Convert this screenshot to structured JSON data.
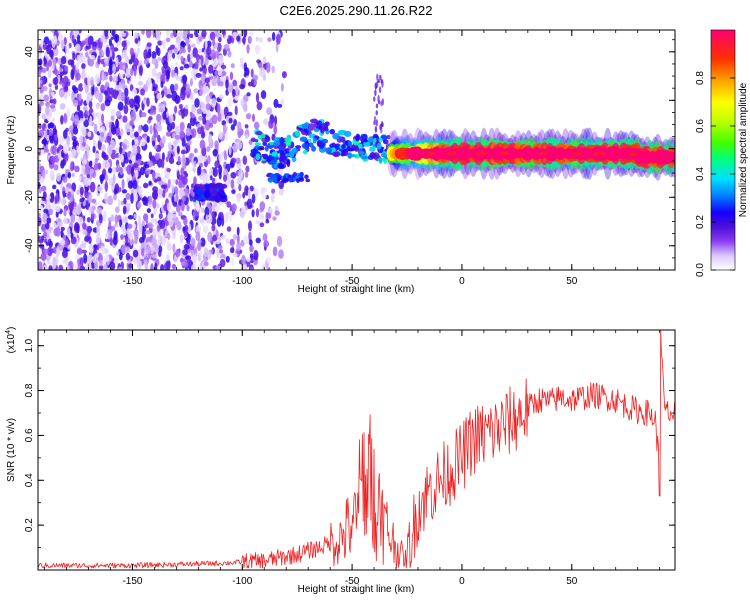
{
  "title": "C2E6.2025.290.11.26.R22",
  "chart_data": [
    {
      "type": "heatmap",
      "xlabel": "Height of straight line (km)",
      "ylabel": "Frequency (Hz)",
      "xlim": [
        -193,
        97
      ],
      "ylim": [
        -50,
        49
      ],
      "xticks": [
        -150,
        -100,
        -50,
        0,
        50
      ],
      "yticks": [
        -40,
        -20,
        0,
        20,
        40
      ],
      "colorbar": {
        "label": "Normalized spectral amplitude",
        "range": [
          0,
          1
        ],
        "ticks": [
          "0.0",
          "0.2",
          "0.4",
          "0.6",
          "0.8"
        ],
        "tick_values": [
          0,
          0.2,
          0.4,
          0.6,
          0.8
        ],
        "colors": [
          "#ffffff",
          "#dcc8ff",
          "#8a3cf0",
          "#4a10d8",
          "#1400ff",
          "#0080ff",
          "#00e0ff",
          "#00ff80",
          "#40ff00",
          "#c0ff00",
          "#ffff00",
          "#ffa000",
          "#ff3000",
          "#ff0070"
        ]
      },
      "regions": [
        {
          "name": "noise",
          "x_range": [
            -193,
            -80
          ],
          "freq_range": [
            -50,
            49
          ],
          "amplitude": 0.12
        },
        {
          "name": "transition",
          "x_range": [
            -95,
            -30
          ],
          "freq_range": [
            -15,
            10
          ],
          "amplitude": 0.35
        },
        {
          "name": "signal",
          "x_range": [
            -30,
            97
          ],
          "freq_center": -2,
          "amplitude": 0.85
        }
      ]
    },
    {
      "type": "line",
      "xlabel": "Height of straight line (km)",
      "ylabel": "SNR (10 * v/v)",
      "multiplier": "(x10",
      "multiplier_exp": "4",
      "multiplier_close": ")",
      "xlim": [
        -193,
        97
      ],
      "ylim": [
        0,
        1.07
      ],
      "xticks": [
        -150,
        -100,
        -50,
        0,
        50
      ],
      "yticks": [
        0.2,
        0.4,
        0.6,
        0.8,
        1.0
      ],
      "ytick_labels": [
        "0.2",
        "0.4",
        "0.6",
        "0.8",
        "1.0"
      ],
      "color": "#ee2222",
      "series": [
        {
          "name": "SNR",
          "x": [
            -193,
            -150,
            -110,
            -90,
            -75,
            -65,
            -55,
            -48,
            -45,
            -42,
            -40,
            -36,
            -30,
            -25,
            -20,
            -15,
            -10,
            -5,
            0,
            5,
            10,
            15,
            20,
            25,
            30,
            35,
            40,
            45,
            50,
            55,
            60,
            65,
            70,
            75,
            80,
            85,
            88,
            90,
            91,
            92,
            94,
            97
          ],
          "y": [
            0.02,
            0.02,
            0.03,
            0.04,
            0.07,
            0.1,
            0.14,
            0.24,
            0.35,
            0.4,
            0.3,
            0.22,
            0.1,
            0.04,
            0.28,
            0.35,
            0.4,
            0.45,
            0.5,
            0.58,
            0.6,
            0.62,
            0.65,
            0.68,
            0.72,
            0.76,
            0.75,
            0.77,
            0.76,
            0.77,
            0.78,
            0.77,
            0.76,
            0.73,
            0.71,
            0.7,
            0.67,
            0.45,
            1.0,
            0.72,
            0.7,
            0.69
          ]
        }
      ]
    }
  ]
}
